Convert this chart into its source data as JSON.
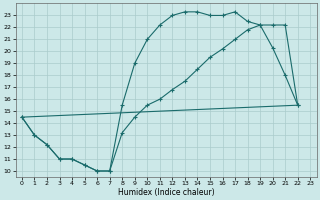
{
  "xlabel": "Humidex (Indice chaleur)",
  "background_color": "#cce8e8",
  "grid_color": "#aacccc",
  "line_color": "#1a6b6b",
  "xlim": [
    -0.5,
    23.5
  ],
  "ylim": [
    9.5,
    24.0
  ],
  "yticks": [
    10,
    11,
    12,
    13,
    14,
    15,
    16,
    17,
    18,
    19,
    20,
    21,
    22,
    23
  ],
  "xticks": [
    0,
    1,
    2,
    3,
    4,
    5,
    6,
    7,
    8,
    9,
    10,
    11,
    12,
    13,
    14,
    15,
    16,
    17,
    18,
    19,
    20,
    21,
    22,
    23
  ],
  "line1_x": [
    0,
    1,
    2,
    3,
    4,
    5,
    6,
    7,
    8,
    9,
    10,
    11,
    12,
    13,
    14,
    15,
    16,
    17,
    18,
    19,
    20,
    21,
    22
  ],
  "line1_y": [
    14.5,
    13.0,
    12.2,
    11.0,
    11.0,
    10.5,
    10.0,
    10.0,
    15.5,
    19.0,
    21.0,
    22.2,
    23.0,
    23.3,
    23.3,
    23.0,
    23.0,
    23.3,
    22.5,
    22.2,
    20.3,
    18.0,
    15.5
  ],
  "line2_x": [
    0,
    1,
    2,
    3,
    4,
    5,
    6,
    7,
    8,
    9,
    10,
    11,
    12,
    13,
    14,
    15,
    16,
    17,
    18,
    19,
    20,
    21,
    22
  ],
  "line2_y": [
    14.5,
    13.0,
    12.2,
    11.0,
    11.0,
    10.5,
    10.0,
    10.0,
    13.2,
    14.5,
    15.5,
    16.0,
    16.8,
    17.5,
    18.5,
    19.5,
    20.2,
    21.0,
    21.8,
    22.2,
    22.2,
    22.2,
    15.5
  ],
  "line3_x": [
    0,
    22
  ],
  "line3_y": [
    14.5,
    15.5
  ]
}
